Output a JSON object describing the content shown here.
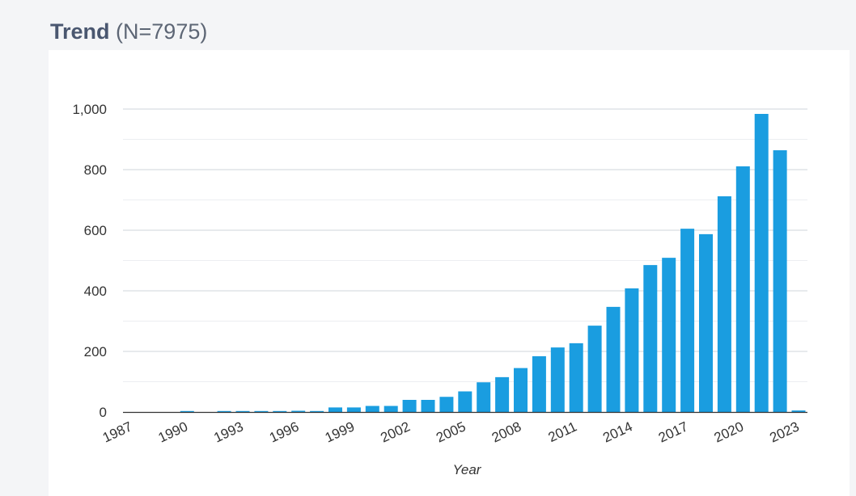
{
  "header": {
    "title": "Trend",
    "count": "(N=7975)"
  },
  "colors": {
    "bar": "#1a9de0",
    "grid": "#d9dde3",
    "axis": "#333333"
  },
  "chart_data": {
    "type": "bar",
    "title": "Trend (N=7975)",
    "xlabel": "Year",
    "ylabel": "",
    "ylim": [
      0,
      1000
    ],
    "yticks": [
      0,
      200,
      400,
      600,
      800,
      1000
    ],
    "ytick_labels": [
      "0",
      "200",
      "400",
      "600",
      "800",
      "1,000"
    ],
    "xtick_labels": [
      "1987",
      "1990",
      "1993",
      "1996",
      "1999",
      "2002",
      "2005",
      "2008",
      "2011",
      "2014",
      "2017",
      "2020",
      "2023"
    ],
    "categories": [
      1987,
      1988,
      1989,
      1990,
      1991,
      1992,
      1993,
      1994,
      1995,
      1996,
      1997,
      1998,
      1999,
      2000,
      2001,
      2002,
      2003,
      2004,
      2005,
      2006,
      2007,
      2008,
      2009,
      2010,
      2011,
      2012,
      2013,
      2014,
      2015,
      2016,
      2017,
      2018,
      2019,
      2020,
      2021,
      2022,
      2023
    ],
    "values": [
      0,
      0,
      0,
      1,
      0,
      2,
      3,
      3,
      3,
      4,
      1,
      15,
      15,
      20,
      20,
      40,
      40,
      50,
      68,
      98,
      115,
      145,
      184,
      213,
      227,
      285,
      347,
      408,
      485,
      509,
      605,
      587,
      712,
      811,
      984,
      864,
      5
    ],
    "grid": true
  }
}
